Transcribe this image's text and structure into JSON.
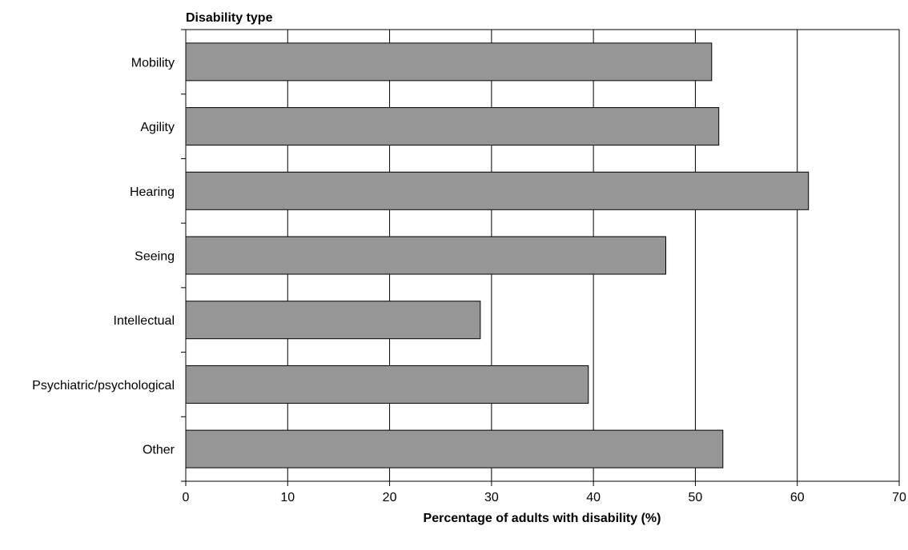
{
  "chart_data": {
    "type": "bar",
    "orientation": "horizontal",
    "title": "",
    "ylabel": "Disability type",
    "xlabel": "Percentage of adults with disability (%)",
    "categories": [
      "Mobility",
      "Agility",
      "Hearing",
      "Seeing",
      "Intellectual",
      "Psychiatric/psychological",
      "Other"
    ],
    "values": [
      51.6,
      52.3,
      61.1,
      47.1,
      28.9,
      39.5,
      52.7
    ],
    "xlim": [
      0,
      70
    ],
    "xticks": [
      "0",
      "10",
      "20",
      "30",
      "40",
      "50",
      "60",
      "70"
    ],
    "grid": "vertical",
    "bar_color": "#969696",
    "legend": "none"
  }
}
